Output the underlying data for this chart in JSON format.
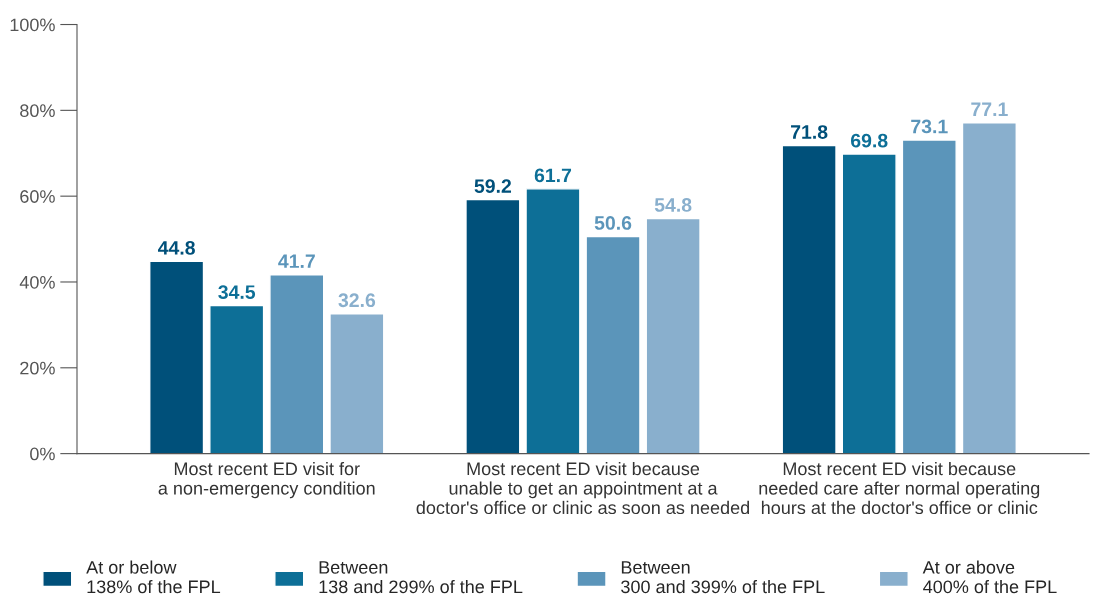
{
  "chart_data": {
    "type": "bar",
    "categories": [
      "Most recent ED visit for\na non-emergency condition",
      "Most recent ED visit because\nunable to get an appointment at a\ndoctor's office or clinic as soon as needed",
      "Most recent ED visit because\nneeded care after normal operating\nhours at the doctor's office or clinic"
    ],
    "series": [
      {
        "name": "At or below\n138% of the FPL",
        "color": "#00507a",
        "values": [
          44.8,
          59.2,
          71.8
        ]
      },
      {
        "name": "Between\n138 and 299% of the FPL",
        "color": "#0d6f97",
        "values": [
          34.5,
          61.7,
          69.8
        ]
      },
      {
        "name": "Between\n300 and 399% of the FPL",
        "color": "#5b95ba",
        "values": [
          41.7,
          50.6,
          73.1
        ]
      },
      {
        "name": "At or above\n400% of the FPL",
        "color": "#89afcd",
        "values": [
          32.6,
          54.8,
          77.1
        ]
      }
    ],
    "ylim": [
      0,
      100
    ],
    "yticks": [
      {
        "value": 0,
        "label": "0%"
      },
      {
        "value": 20,
        "label": "20%"
      },
      {
        "value": 40,
        "label": "40%"
      },
      {
        "value": 60,
        "label": "60%"
      },
      {
        "value": 80,
        "label": "80%"
      },
      {
        "value": 100,
        "label": "100%"
      }
    ],
    "data_labels": true,
    "grid": false,
    "legend": "bottom"
  }
}
